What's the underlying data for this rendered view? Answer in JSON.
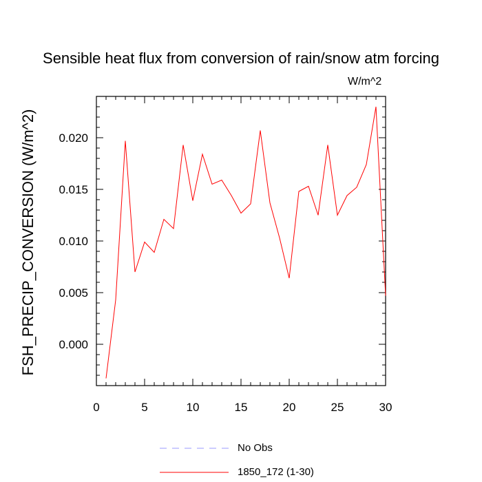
{
  "chart_data": {
    "type": "line",
    "title": "Sensible heat flux from conversion of rain/snow atm forcing",
    "units": "W/m^2",
    "ylabel": "FSH_PRECIP_CONVERSION  (W/m^2)",
    "xlabel": "",
    "xlim": [
      0,
      30
    ],
    "ylim": [
      -0.004,
      0.024
    ],
    "xticks": [
      0,
      5,
      10,
      15,
      20,
      25,
      30
    ],
    "xtick_labels": [
      "0",
      "5",
      "10",
      "15",
      "20",
      "25",
      "30"
    ],
    "yticks": [
      0.0,
      0.005,
      0.01,
      0.015,
      0.02
    ],
    "ytick_labels": [
      "0.000",
      "0.005",
      "0.010",
      "0.015",
      "0.020"
    ],
    "x": [
      1,
      2,
      3,
      4,
      5,
      6,
      7,
      8,
      9,
      10,
      11,
      12,
      13,
      14,
      15,
      16,
      17,
      18,
      19,
      20,
      21,
      22,
      23,
      24,
      25,
      26,
      27,
      28,
      29,
      30
    ],
    "series": [
      {
        "name": "1850_172 (1-30)",
        "color": "#ff0000",
        "dash": "solid",
        "values": [
          -0.0033,
          0.0043,
          0.0197,
          0.007,
          0.0099,
          0.0089,
          0.0121,
          0.0112,
          0.0193,
          0.0139,
          0.0184,
          0.0155,
          0.0159,
          0.0144,
          0.0127,
          0.0136,
          0.0207,
          0.0137,
          0.0103,
          0.0064,
          0.0148,
          0.0153,
          0.0125,
          0.0193,
          0.0125,
          0.0144,
          0.0152,
          0.0174,
          0.023,
          0.0047
        ]
      }
    ],
    "legend": [
      {
        "label": "No Obs",
        "color": "#9999ff",
        "dash": "dashed"
      },
      {
        "label": "1850_172 (1-30)",
        "color": "#ff0000",
        "dash": "solid"
      }
    ]
  }
}
